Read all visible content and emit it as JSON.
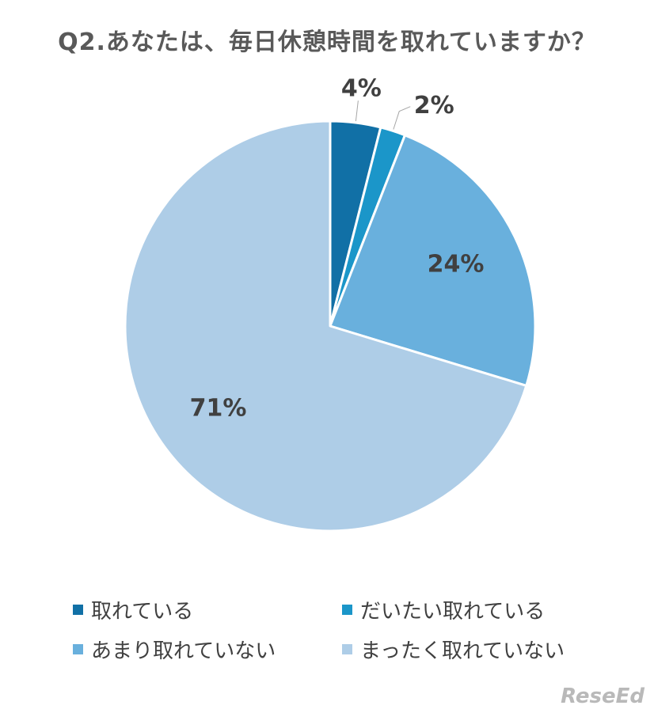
{
  "title": "Q2.あなたは、毎日休憩時間を取れていますか？",
  "chart_data": {
    "type": "pie",
    "title": "Q2.あなたは、毎日休憩時間を取れていますか？",
    "categories": [
      "取れている",
      "だいたい取れている",
      "あまり取れていない",
      "まったく取れていない"
    ],
    "values": [
      4,
      2,
      24,
      71
    ],
    "data_labels": [
      "4%",
      "2%",
      "24%",
      "71%"
    ],
    "colors": [
      "#1170a6",
      "#1b96c9",
      "#69b0dd",
      "#aecde7"
    ],
    "legend_position": "bottom",
    "start_angle": "12 o'clock",
    "direction": "clockwise"
  },
  "legend": {
    "items": [
      {
        "label": "取れている",
        "color": "#1170a6"
      },
      {
        "label": "だいたい取れている",
        "color": "#1b96c9"
      },
      {
        "label": "あまり取れていない",
        "color": "#69b0dd"
      },
      {
        "label": "まったく取れていない",
        "color": "#aecde7"
      }
    ]
  },
  "watermark": "ReseEd"
}
